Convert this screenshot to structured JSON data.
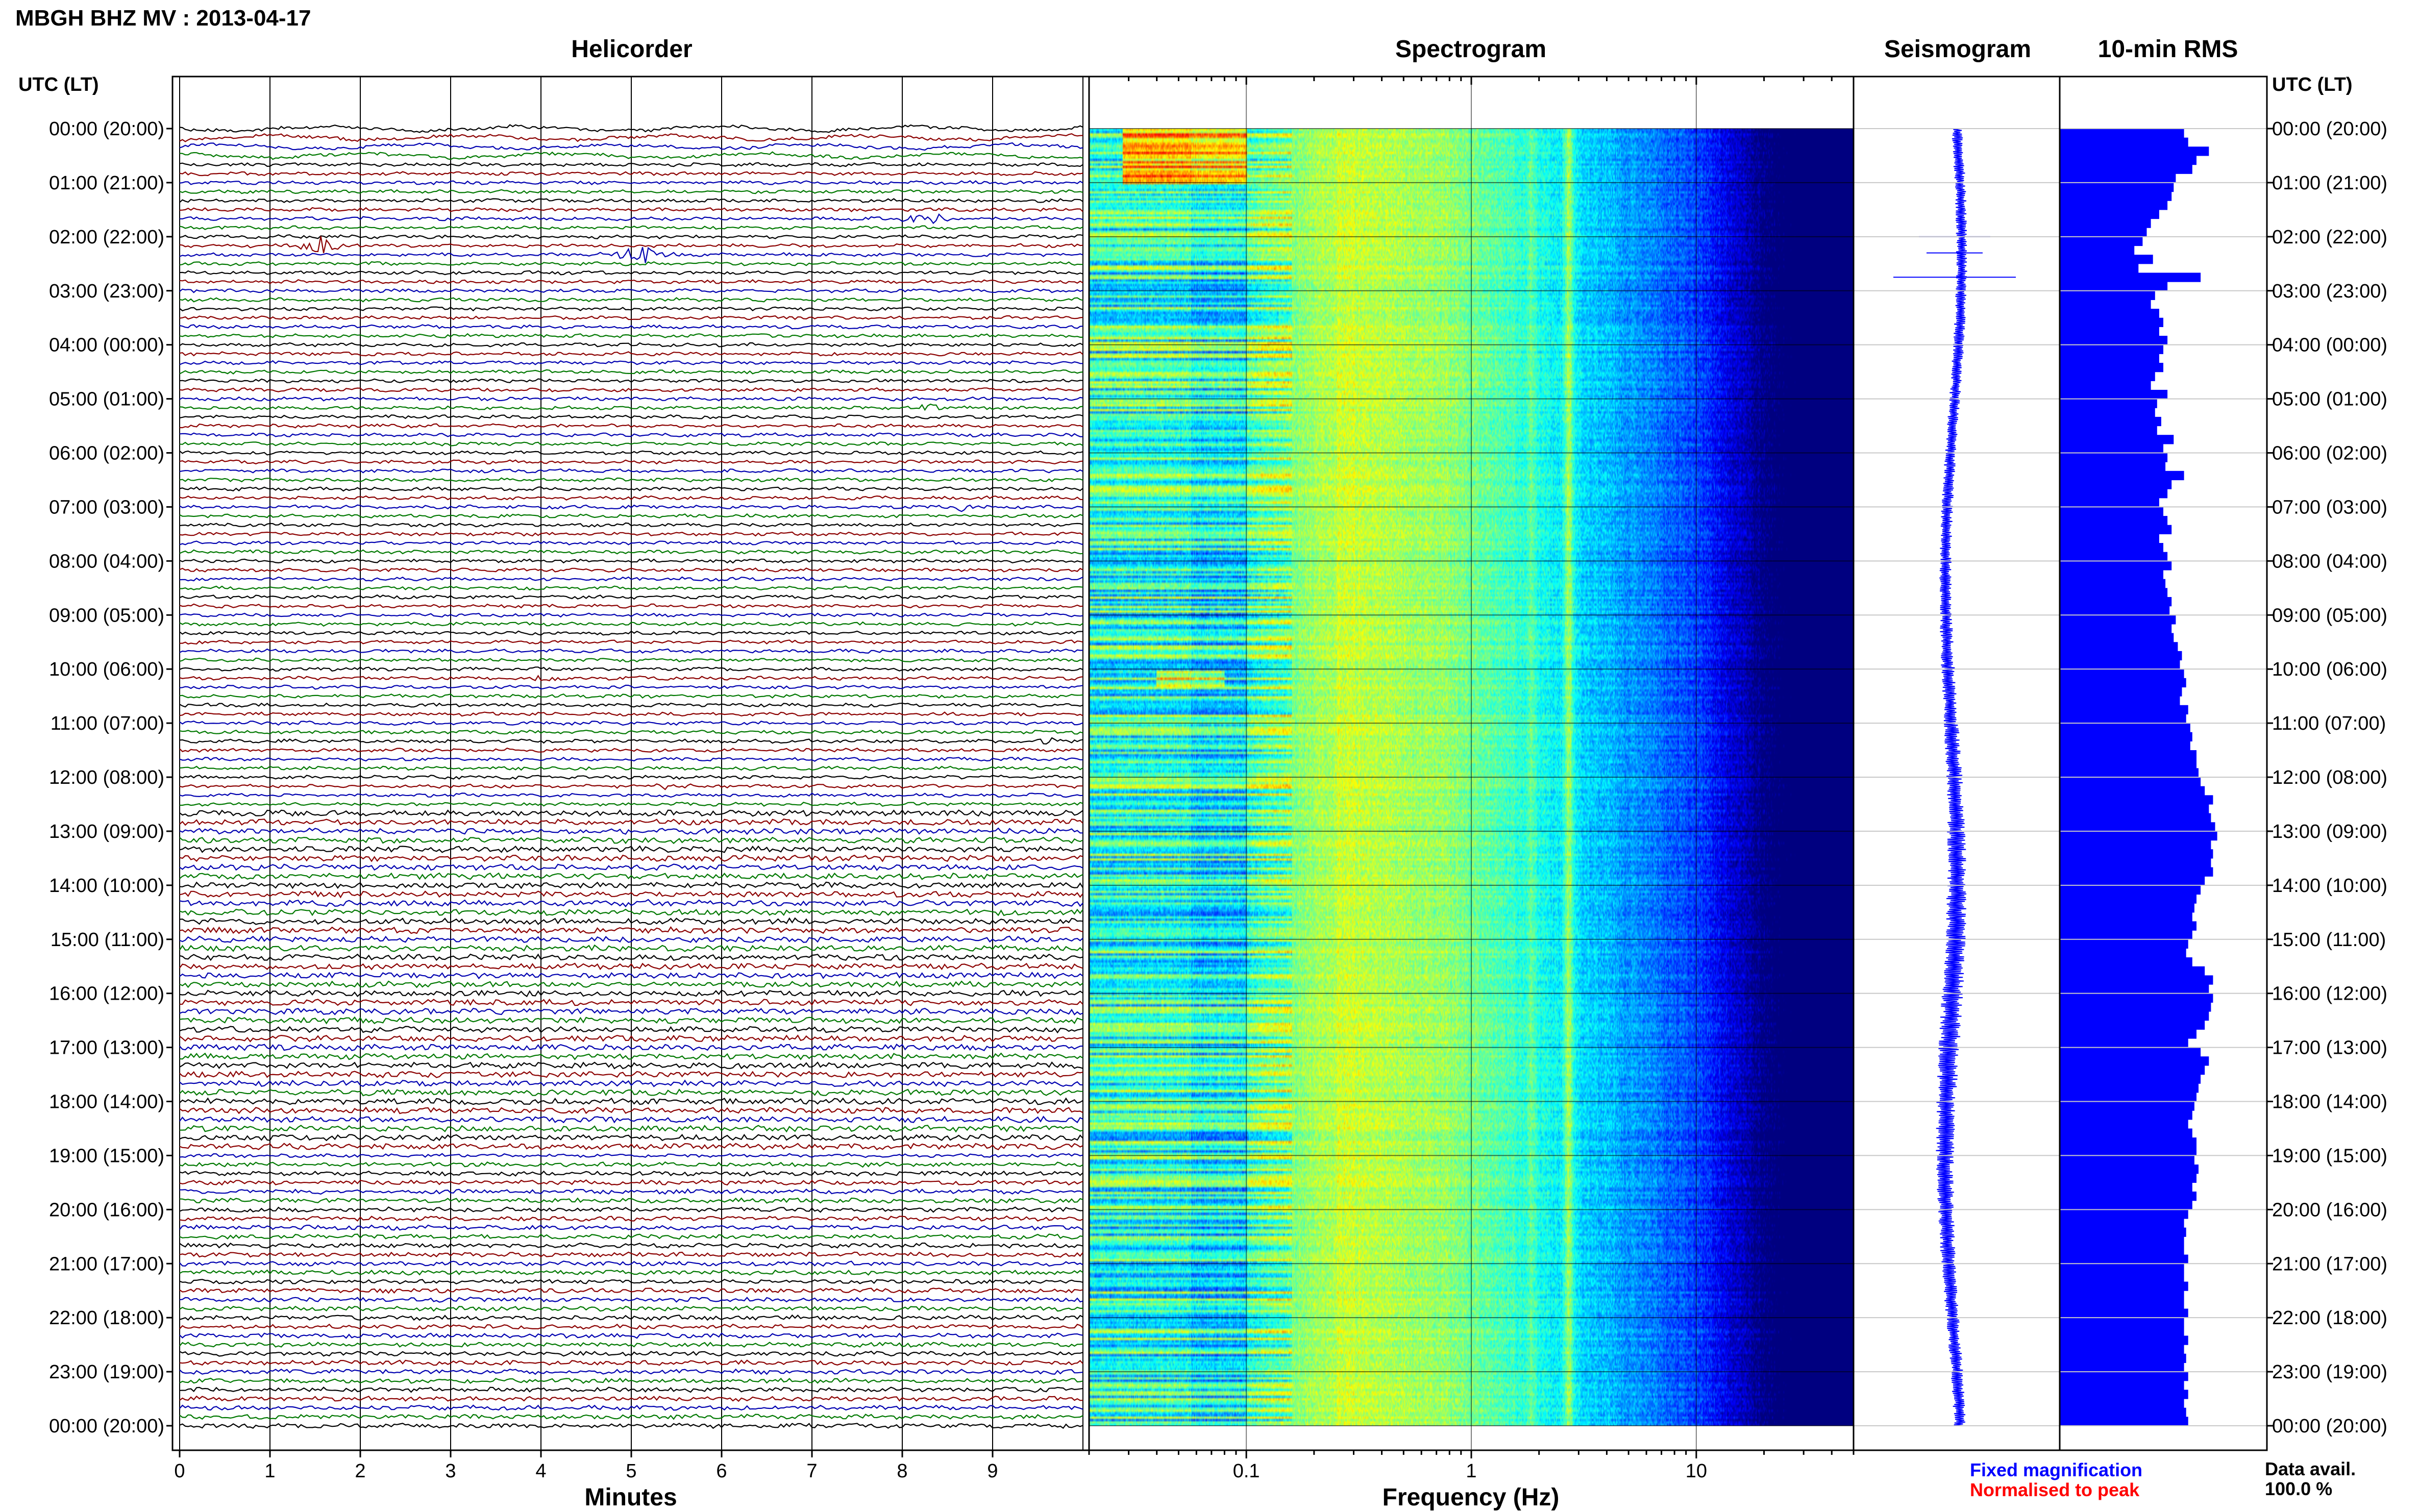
{
  "header": {
    "station_title": "MBGH BHZ MV : 2013-04-17",
    "utc_lt_label": "UTC (LT)"
  },
  "panels": {
    "helicorder": "Helicorder",
    "spectrogram": "Spectrogram",
    "seismogram": "Seismogram",
    "rms": "10-min RMS"
  },
  "time_labels": [
    "00:00 (20:00)",
    "01:00 (21:00)",
    "02:00 (22:00)",
    "03:00 (23:00)",
    "04:00 (00:00)",
    "05:00 (01:00)",
    "06:00 (02:00)",
    "07:00 (03:00)",
    "08:00 (04:00)",
    "09:00 (05:00)",
    "10:00 (06:00)",
    "11:00 (07:00)",
    "12:00 (08:00)",
    "13:00 (09:00)",
    "14:00 (10:00)",
    "15:00 (11:00)",
    "16:00 (12:00)",
    "17:00 (13:00)",
    "18:00 (14:00)",
    "19:00 (15:00)",
    "20:00 (16:00)",
    "21:00 (17:00)",
    "22:00 (18:00)",
    "23:00 (19:00)",
    "00:00 (20:00)"
  ],
  "helicorder_axis": {
    "label": "Minutes",
    "ticks": [
      "0",
      "1",
      "2",
      "3",
      "4",
      "5",
      "6",
      "7",
      "8",
      "9"
    ]
  },
  "spectrogram_axis": {
    "label": "Frequency (Hz)",
    "ticks": [
      "0.1",
      "1",
      "10"
    ]
  },
  "legend": {
    "fixed": "Fixed magnification",
    "normalised": "Normalised to peak",
    "fixed_color": "#0000ff",
    "normalised_color": "#ff0000"
  },
  "data_avail": {
    "label": "Data avail.",
    "value": "100.0 %"
  },
  "chart_data": [
    {
      "type": "line",
      "panel": "helicorder",
      "xlabel": "Minutes",
      "xlim": [
        0,
        10
      ],
      "rows_per_hour": 6,
      "trace_colors": [
        "#000000",
        "#8b0000",
        "#0000b0",
        "#007800"
      ],
      "events": [
        {
          "row": 13,
          "minute": 1.6,
          "amp": 10
        },
        {
          "row": 14,
          "minute": 5.1,
          "amp": 14
        },
        {
          "row": 10,
          "minute": 8.3,
          "amp": 7
        },
        {
          "row": 31,
          "minute": 8.3,
          "amp": 4
        },
        {
          "row": 42,
          "minute": 8.7,
          "amp": 5
        },
        {
          "row": 61,
          "minute": 4.1,
          "amp": 5
        },
        {
          "row": 68,
          "minute": 9.6,
          "amp": 4
        },
        {
          "row": 73,
          "minute": 5.4,
          "amp": 4
        },
        {
          "row": 86,
          "minute": 5.0,
          "amp": 4
        }
      ]
    },
    {
      "type": "heatmap",
      "panel": "spectrogram",
      "xlabel": "Frequency (Hz)",
      "xscale": "log",
      "xlim": [
        0.02,
        50
      ],
      "colormap": "jet"
    },
    {
      "type": "line",
      "panel": "seismogram",
      "spikes_hours": [
        2.0,
        2.3,
        2.75
      ]
    },
    {
      "type": "bar",
      "panel": "10-min RMS",
      "values": [
        60,
        62,
        72,
        66,
        64,
        56,
        55,
        54,
        52,
        48,
        44,
        42,
        40,
        36,
        45,
        38,
        68,
        52,
        46,
        44,
        48,
        50,
        48,
        52,
        50,
        48,
        50,
        46,
        44,
        52,
        47,
        46,
        49,
        47,
        55,
        50,
        52,
        51,
        60,
        54,
        52,
        48,
        50,
        52,
        54,
        48,
        50,
        52,
        54,
        50,
        51,
        52,
        54,
        53,
        56,
        54,
        55,
        57,
        59,
        58,
        60,
        61,
        59,
        58,
        62,
        61,
        63,
        64,
        63,
        66,
        66,
        67,
        68,
        70,
        74,
        72,
        73,
        75,
        76,
        73,
        74,
        73,
        74,
        70,
        68,
        66,
        65,
        64,
        66,
        64,
        62,
        61,
        64,
        70,
        74,
        72,
        74,
        73,
        72,
        70,
        66,
        62,
        68,
        72,
        70,
        68,
        67,
        66,
        65,
        64,
        62,
        64,
        66,
        66,
        65,
        67,
        66,
        64,
        66,
        64,
        62,
        60,
        61,
        60,
        60,
        62,
        60,
        60,
        62,
        60,
        60,
        62,
        60,
        60,
        62,
        60,
        61,
        60,
        62,
        60,
        62,
        60,
        61,
        62
      ]
    }
  ]
}
